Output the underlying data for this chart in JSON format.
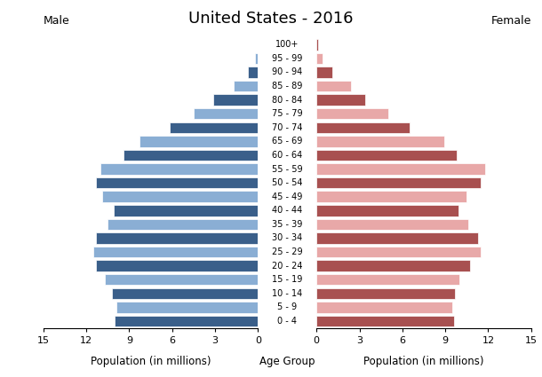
{
  "title": "United States - 2016",
  "age_groups": [
    "0 - 4",
    "5 - 9",
    "10 - 14",
    "15 - 19",
    "20 - 24",
    "25 - 29",
    "30 - 34",
    "35 - 39",
    "40 - 44",
    "45 - 49",
    "50 - 54",
    "55 - 59",
    "60 - 64",
    "65 - 69",
    "70 - 74",
    "75 - 79",
    "80 - 84",
    "85 - 89",
    "90 - 94",
    "95 - 99",
    "100+"
  ],
  "male": [
    10.0,
    9.9,
    10.2,
    10.7,
    11.3,
    11.5,
    11.3,
    10.5,
    10.1,
    10.9,
    11.3,
    11.0,
    9.4,
    8.3,
    6.2,
    4.5,
    3.1,
    1.7,
    0.7,
    0.2,
    0.05
  ],
  "female": [
    9.6,
    9.5,
    9.7,
    10.0,
    10.7,
    11.5,
    11.3,
    10.6,
    9.9,
    10.5,
    11.5,
    11.8,
    9.8,
    8.9,
    6.5,
    5.0,
    3.4,
    2.4,
    1.1,
    0.4,
    0.1
  ],
  "male_dark": "#3a5f8a",
  "male_light": "#8aaed4",
  "female_dark": "#a85050",
  "female_light": "#e8a8a8",
  "xlim": 15,
  "xlabel_left": "Population (in millions)",
  "xlabel_center": "Age Group",
  "xlabel_right": "Population (in millions)",
  "label_male": "Male",
  "label_female": "Female",
  "bg_color": "#ffffff",
  "bar_height": 0.8,
  "xticks": [
    0,
    3,
    6,
    9,
    12,
    15
  ]
}
